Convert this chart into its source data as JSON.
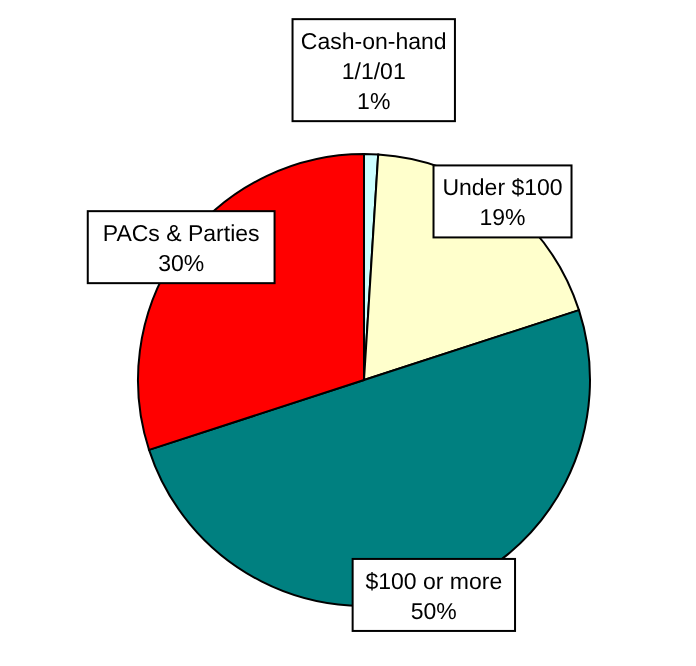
{
  "chart_data": {
    "type": "pie",
    "categories": [
      "Cash-on-hand 1/1/01",
      "Under $100",
      "$100 or more",
      "PACs & Parties"
    ],
    "values": [
      1,
      19,
      50,
      30
    ],
    "colors": [
      "#ccffff",
      "#ffffcc",
      "#008080",
      "#ff0000"
    ],
    "value_labels": [
      "1%",
      "19%",
      "50%",
      "30%"
    ],
    "legend": false
  }
}
